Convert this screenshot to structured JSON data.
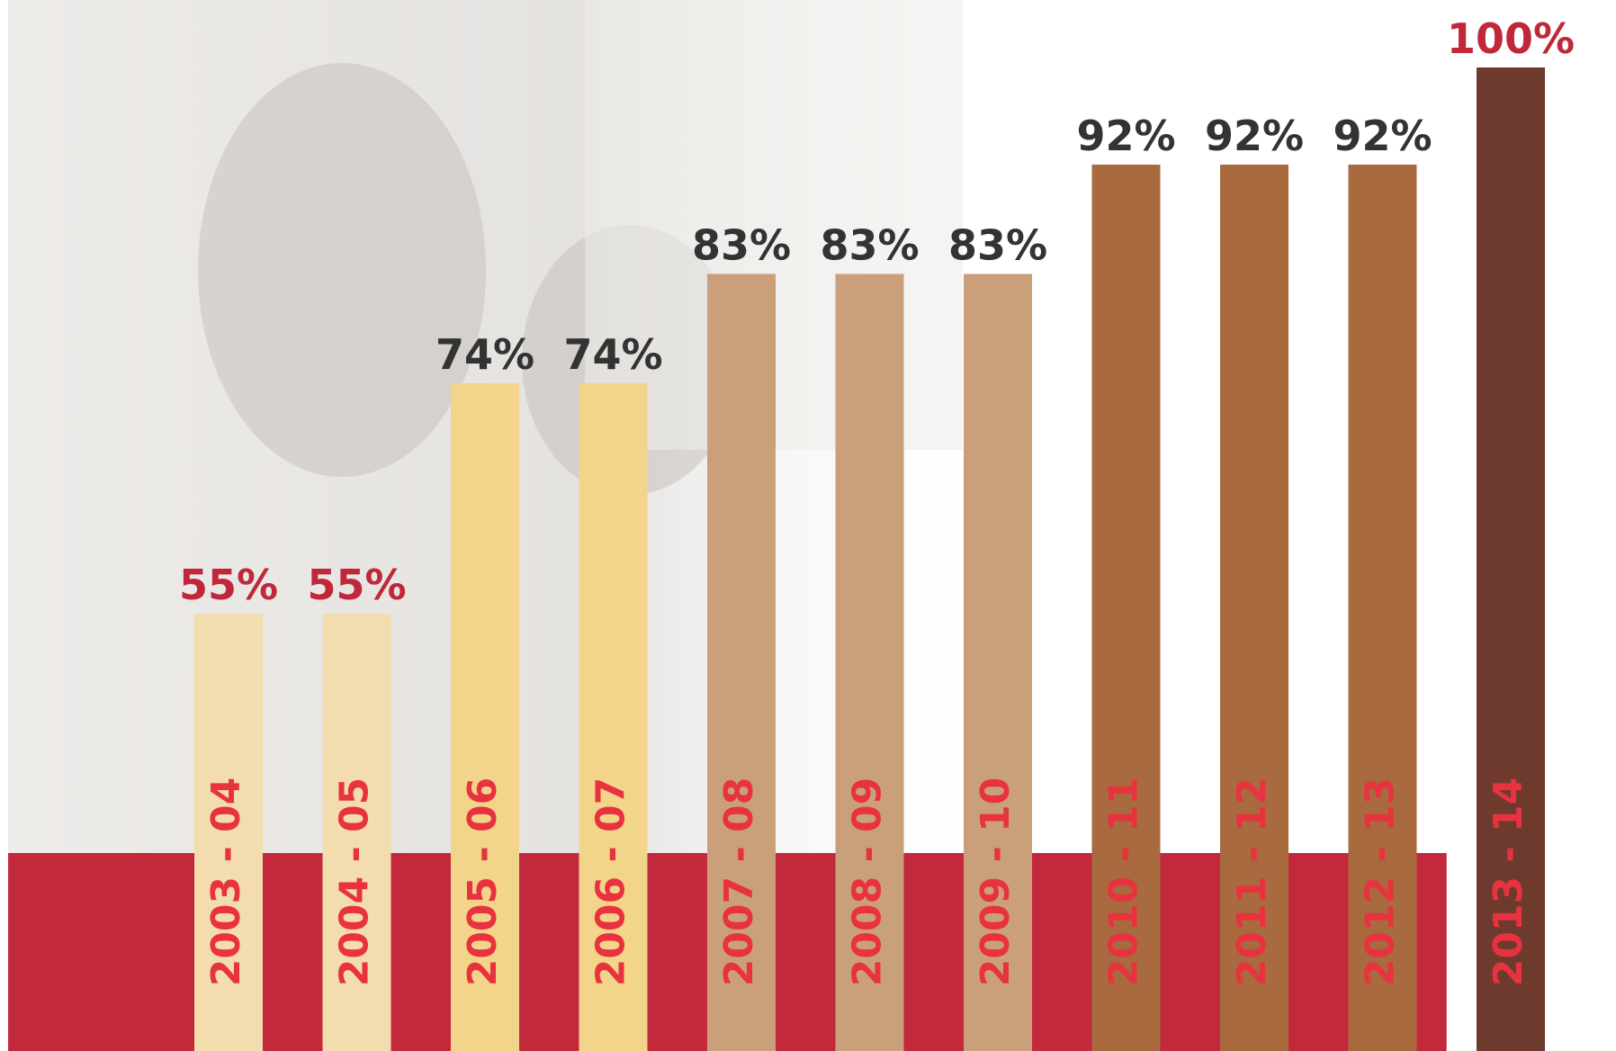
{
  "chart_data": {
    "type": "bar",
    "categories": [
      "2003 - 04",
      "2004 - 05",
      "2005 - 06",
      "2006 - 07",
      "2007 - 08",
      "2008 - 09",
      "2009 - 10",
      "2010 - 11",
      "2011 - 12",
      "2012 - 13",
      "2013 - 14"
    ],
    "values": [
      55,
      55,
      74,
      74,
      83,
      83,
      83,
      92,
      92,
      92,
      100
    ],
    "value_labels": [
      "55%",
      "55%",
      "74%",
      "74%",
      "83%",
      "83%",
      "83%",
      "92%",
      "92%",
      "92%",
      "100%"
    ],
    "colors": [
      "#f3dcae",
      "#f3dcae",
      "#f2d58a",
      "#f2d58a",
      "#c9a079",
      "#c9a079",
      "#c9a079",
      "#a86a3e",
      "#a86a3e",
      "#a86a3e",
      "#6e3a2e"
    ],
    "value_label_colors": [
      "#c0283a",
      "#c0283a",
      "#333333",
      "#333333",
      "#333333",
      "#333333",
      "#333333",
      "#333333",
      "#333333",
      "#333333",
      "#c0283a"
    ],
    "category_label_color": "#e8323f",
    "band_color": "#c22a3c",
    "ylim": [
      19,
      100
    ]
  }
}
